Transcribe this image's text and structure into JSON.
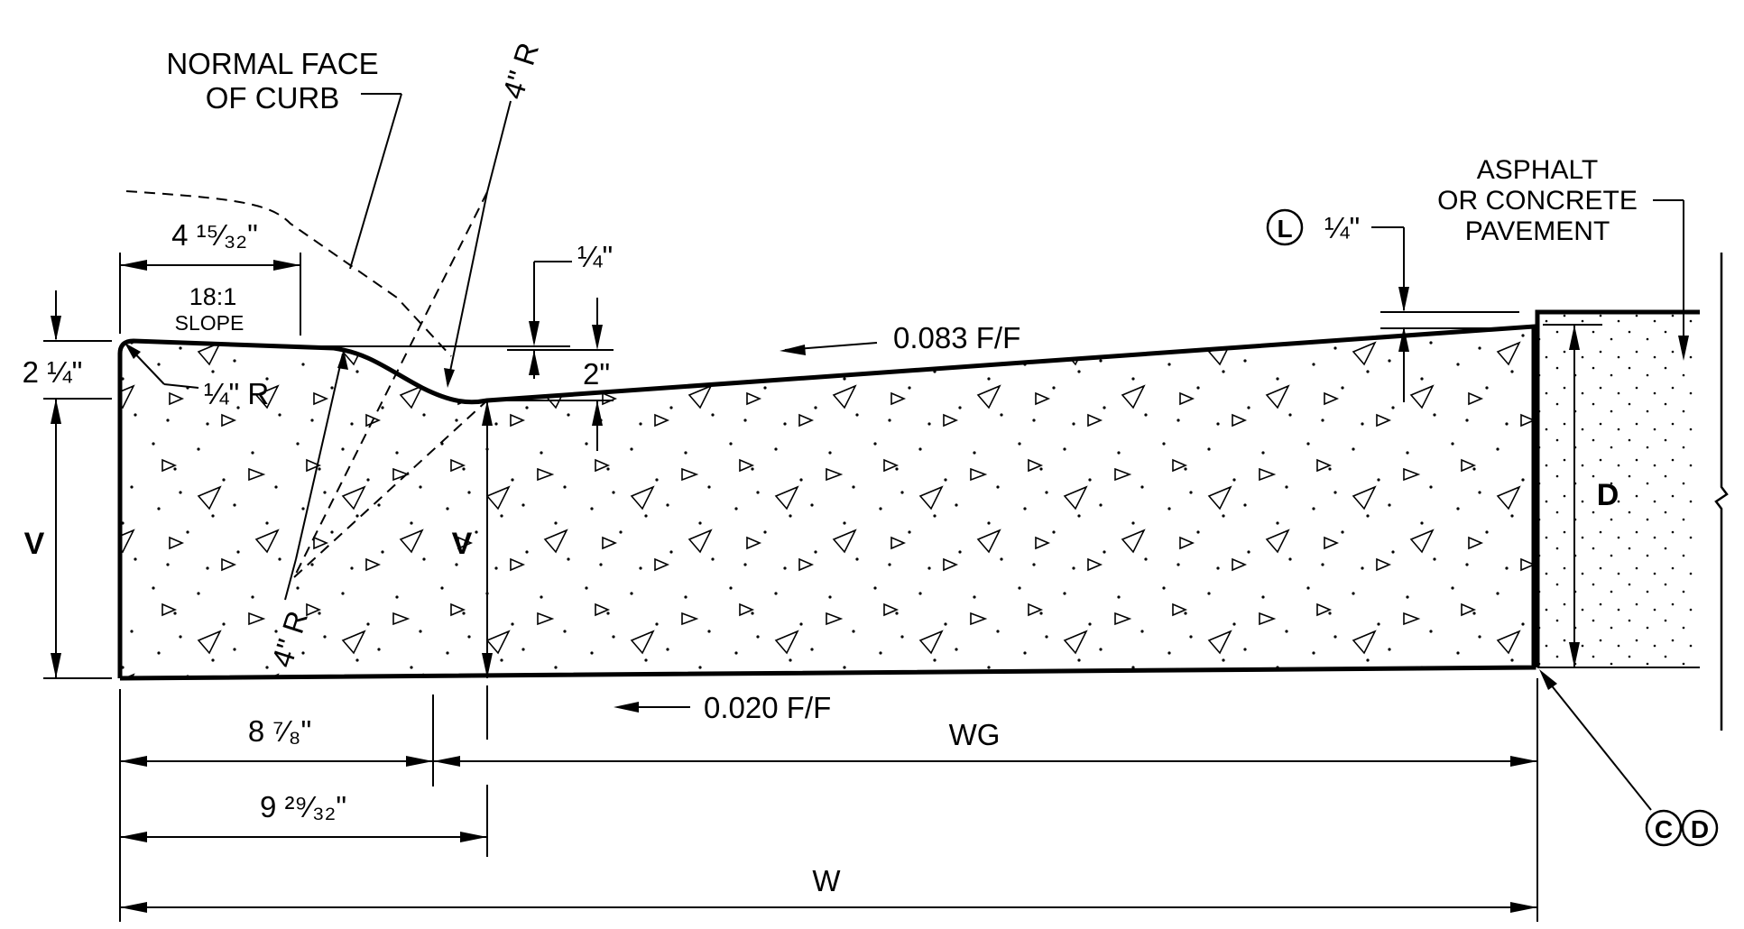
{
  "labels": {
    "normal_face_line1": "NORMAL FACE",
    "normal_face_line2": "OF CURB",
    "radius_top": "4\" R",
    "radius_bottom": "4\" R",
    "quarter_radius": "¼\" R",
    "dim_4_15_32": "4 ¹⁵⁄₃₂\"",
    "slope_ratio": "18:1",
    "slope_word": "SLOPE",
    "dim_2_quarter": "2 ¼\"",
    "dim_quarter_top": "¼\"",
    "dim_2in": "2\"",
    "cross_slope_top": "0.083 F/F",
    "cross_slope_bottom": "0.020 F/F",
    "v_left": "V",
    "v_mid": "V",
    "d_label": "D",
    "asphalt_line1": "ASPHALT",
    "asphalt_line2": "OR CONCRETE",
    "asphalt_line3": "PAVEMENT",
    "note_l": "L",
    "dim_quarter_right": "¼\"",
    "dim_8_7_8": "8 ⁷⁄₈\"",
    "dim_9_29_32": "9 ²⁹⁄₃₂\"",
    "wg": "WG",
    "w": "W",
    "note_c": "C",
    "note_d": "D"
  }
}
